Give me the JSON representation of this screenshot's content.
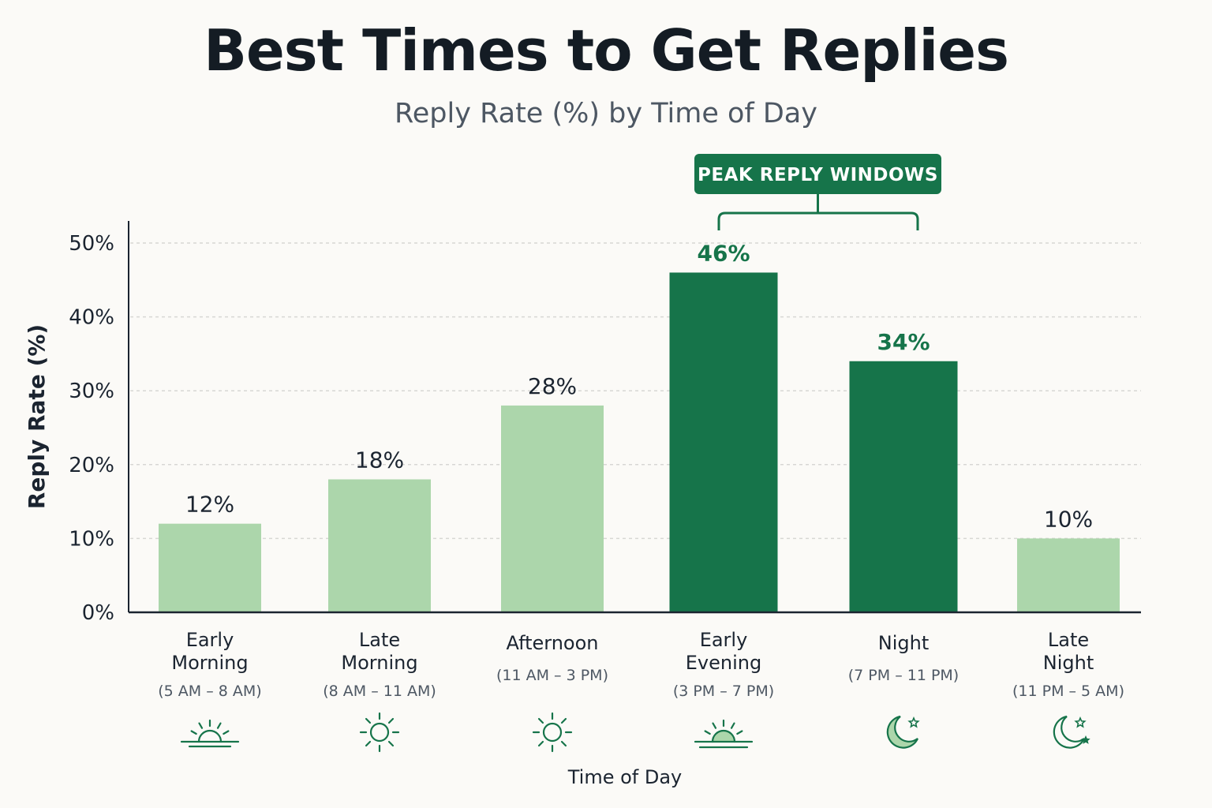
{
  "colors": {
    "light_bar": "#acd6ab",
    "dark_bar": "#16744a",
    "accent": "#16744a",
    "text": "#1b2430",
    "muted": "#4d5763",
    "grid": "#d7d7d4",
    "background": "#fbfaf7"
  },
  "peak_badge": {
    "label": "PEAK REPLY WINDOWS"
  },
  "chart_data": {
    "type": "bar",
    "title": "Best Times to Get Replies",
    "subtitle": "Reply Rate (%) by Time of Day",
    "xlabel": "Time of Day",
    "ylabel": "Reply Rate (%)",
    "ylim": [
      0,
      50
    ],
    "yticks": [
      0,
      10,
      20,
      30,
      40,
      50
    ],
    "ytick_labels": [
      "0%",
      "10%",
      "20%",
      "30%",
      "40%",
      "50%"
    ],
    "grid": true,
    "categories": [
      {
        "name": [
          "Early",
          "Morning"
        ],
        "range": "(5 AM – 8 AM)",
        "icon": "sunrise-icon",
        "peak": false
      },
      {
        "name": [
          "Late",
          "Morning"
        ],
        "range": "(8 AM – 11 AM)",
        "icon": "sun-icon",
        "peak": false
      },
      {
        "name": [
          "Afternoon"
        ],
        "range": "(11 AM – 3 PM)",
        "icon": "sun-icon",
        "peak": false
      },
      {
        "name": [
          "Early",
          "Evening"
        ],
        "range": "(3 PM – 7 PM)",
        "icon": "sunset-icon",
        "peak": true
      },
      {
        "name": [
          "Night"
        ],
        "range": "(7 PM – 11 PM)",
        "icon": "moon-star-icon",
        "peak": true
      },
      {
        "name": [
          "Late",
          "Night"
        ],
        "range": "(11 PM – 5 AM)",
        "icon": "moon-stars-icon",
        "peak": false
      }
    ],
    "values": [
      12,
      18,
      28,
      46,
      34,
      10
    ],
    "value_labels": [
      "12%",
      "18%",
      "28%",
      "46%",
      "34%",
      "10%"
    ]
  }
}
